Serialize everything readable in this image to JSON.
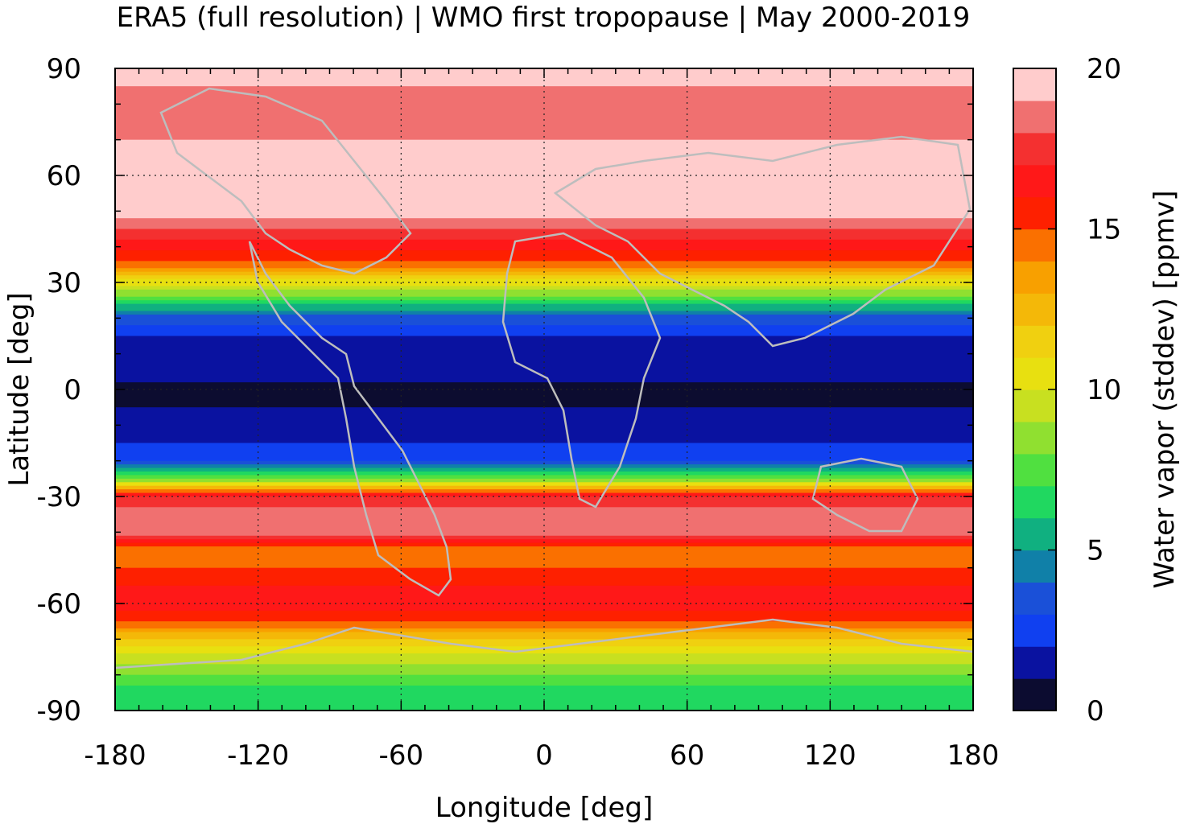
{
  "chart_data": {
    "type": "heatmap",
    "title": "ERA5 (full resolution) | WMO first tropopause | May 2000-2019",
    "xlabel": "Longitude [deg]",
    "ylabel": "Latitude [deg]",
    "xlim": [
      -180,
      180
    ],
    "ylim": [
      -90,
      90
    ],
    "x_ticks": [
      "-180",
      "-120",
      "-60",
      "0",
      "60",
      "120",
      "180"
    ],
    "y_ticks": [
      "90",
      "60",
      "30",
      "0",
      "-30",
      "-60",
      "-90"
    ],
    "x_tick_values": [
      -180,
      -120,
      -60,
      0,
      60,
      120,
      180
    ],
    "y_tick_values": [
      90,
      60,
      30,
      0,
      -30,
      -60,
      -90
    ],
    "grid": true,
    "colorbar": {
      "label": "Water vapor (stddev) [ppmv]",
      "range": [
        0,
        20
      ],
      "ticks": [
        "0",
        "5",
        "10",
        "15",
        "20"
      ],
      "tick_values": [
        0,
        5,
        10,
        15,
        20
      ],
      "colors": [
        "#0c0c30",
        "#0a12a0",
        "#1040f0",
        "#1a50d8",
        "#1080a8",
        "#10b080",
        "#20d860",
        "#50e040",
        "#90e030",
        "#c8e020",
        "#e8e010",
        "#f0d010",
        "#f4b808",
        "#f8a000",
        "#fa7000",
        "#fe2000",
        "#ff1818",
        "#f43030",
        "#f07070",
        "#ffcccc"
      ]
    },
    "zonal_profile": [
      {
        "lat": 90,
        "value": 19.5
      },
      {
        "lat": 80,
        "value": 18.5
      },
      {
        "lat": 70,
        "value": 19.0
      },
      {
        "lat": 60,
        "value": 19.5
      },
      {
        "lat": 50,
        "value": 19.5
      },
      {
        "lat": 40,
        "value": 16.5
      },
      {
        "lat": 35,
        "value": 14.5
      },
      {
        "lat": 30,
        "value": 10.5
      },
      {
        "lat": 25,
        "value": 7.0
      },
      {
        "lat": 20,
        "value": 3.5
      },
      {
        "lat": 15,
        "value": 2.0
      },
      {
        "lat": 10,
        "value": 1.5
      },
      {
        "lat": 5,
        "value": 1.2
      },
      {
        "lat": 0,
        "value": 0.8
      },
      {
        "lat": -5,
        "value": 1.0
      },
      {
        "lat": -10,
        "value": 1.5
      },
      {
        "lat": -15,
        "value": 2.0
      },
      {
        "lat": -20,
        "value": 3.0
      },
      {
        "lat": -25,
        "value": 8.0
      },
      {
        "lat": -30,
        "value": 17.5
      },
      {
        "lat": -40,
        "value": 19.0
      },
      {
        "lat": -45,
        "value": 14.0
      },
      {
        "lat": -50,
        "value": 15.0
      },
      {
        "lat": -55,
        "value": 16.0
      },
      {
        "lat": -60,
        "value": 16.5
      },
      {
        "lat": -65,
        "value": 15.0
      },
      {
        "lat": -70,
        "value": 12.0
      },
      {
        "lat": -75,
        "value": 9.5
      },
      {
        "lat": -80,
        "value": 8.0
      },
      {
        "lat": -85,
        "value": 6.5
      },
      {
        "lat": -90,
        "value": 6.0
      }
    ]
  }
}
